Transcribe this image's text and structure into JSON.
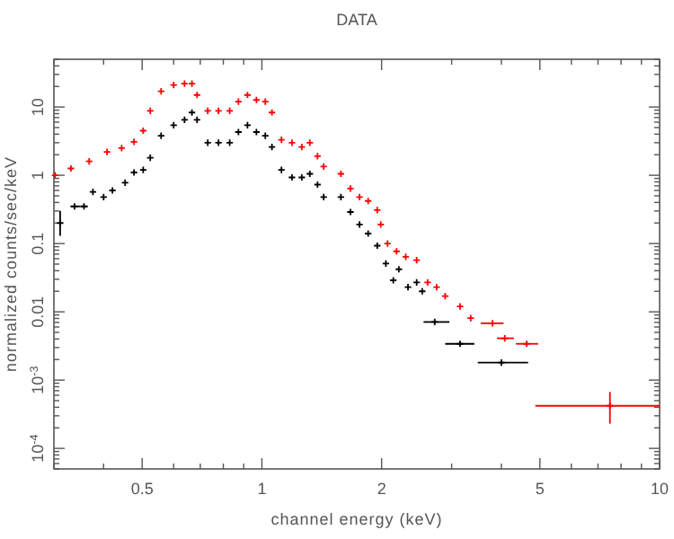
{
  "chart_data": {
    "type": "scatter",
    "title": "DATA",
    "xlabel": "channel energy (keV)",
    "ylabel": "normalized counts/sec/keV",
    "log": "xy",
    "grid": false,
    "marker": "cross",
    "xlim": [
      0.3,
      10
    ],
    "ylim": [
      5e-05,
      50
    ],
    "xticks": [
      {
        "value": 0.3,
        "label": null
      },
      {
        "value": 0.4,
        "label": null
      },
      0.5,
      {
        "value": 0.6,
        "label": null
      },
      {
        "value": 0.7,
        "label": null
      },
      {
        "value": 0.8,
        "label": null
      },
      {
        "value": 0.9,
        "label": null
      },
      1,
      2,
      {
        "value": 3,
        "label": null
      },
      {
        "value": 4,
        "label": null
      },
      5,
      {
        "value": 6,
        "label": null
      },
      {
        "value": 7,
        "label": null
      },
      {
        "value": 8,
        "label": null
      },
      {
        "value": 9,
        "label": null
      },
      10
    ],
    "yticks": [
      {
        "value": 0.0001,
        "label": "10$^{-4}$"
      },
      {
        "value": 0.001,
        "label": "10$^{-3}$"
      },
      0.01,
      0.1,
      1,
      10,
      {
        "value": 5e-05,
        "label": null
      },
      {
        "value": 6e-05,
        "label": null
      },
      {
        "value": 7e-05,
        "label": null
      },
      {
        "value": 8e-05,
        "label": null
      },
      {
        "value": 9e-05,
        "label": null
      },
      {
        "value": 0.0002,
        "label": null
      },
      {
        "value": 0.0003,
        "label": null
      },
      {
        "value": 0.0004,
        "label": null
      },
      {
        "value": 0.0005,
        "label": null
      },
      {
        "value": 0.0006,
        "label": null
      },
      {
        "value": 0.0007,
        "label": null
      },
      {
        "value": 0.0008,
        "label": null
      },
      {
        "value": 0.0009,
        "label": null
      },
      {
        "value": 0.002,
        "label": null
      },
      {
        "value": 0.003,
        "label": null
      },
      {
        "value": 0.004,
        "label": null
      },
      {
        "value": 0.005,
        "label": null
      },
      {
        "value": 0.006,
        "label": null
      },
      {
        "value": 0.007,
        "label": null
      },
      {
        "value": 0.008,
        "label": null
      },
      {
        "value": 0.009,
        "label": null
      },
      {
        "value": 0.02,
        "label": null
      },
      {
        "value": 0.03,
        "label": null
      },
      {
        "value": 0.04,
        "label": null
      },
      {
        "value": 0.05,
        "label": null
      },
      {
        "value": 0.06,
        "label": null
      },
      {
        "value": 0.07,
        "label": null
      },
      {
        "value": 0.08,
        "label": null
      },
      {
        "value": 0.09,
        "label": null
      },
      {
        "value": 0.2,
        "label": null
      },
      {
        "value": 0.3,
        "label": null
      },
      {
        "value": 0.4,
        "label": null
      },
      {
        "value": 0.5,
        "label": null
      },
      {
        "value": 0.6,
        "label": null
      },
      {
        "value": 0.7,
        "label": null
      },
      {
        "value": 0.8,
        "label": null
      },
      {
        "value": 0.9,
        "label": null
      },
      {
        "value": 2,
        "label": null
      },
      {
        "value": 3,
        "label": null
      },
      {
        "value": 4,
        "label": null
      },
      {
        "value": 5,
        "label": null
      },
      {
        "value": 6,
        "label": null
      },
      {
        "value": 7,
        "label": null
      },
      {
        "value": 8,
        "label": null
      },
      {
        "value": 9,
        "label": null
      },
      {
        "value": 20,
        "label": null
      },
      {
        "value": 30,
        "label": null
      },
      {
        "value": 40,
        "label": null
      },
      {
        "value": 50,
        "label": null
      }
    ],
    "series": [
      {
        "color": "#000000",
        "x": [
          0.311,
          0.338,
          0.357,
          0.376,
          0.4,
          0.421,
          0.453,
          0.477,
          0.503,
          0.524,
          0.558,
          0.6,
          0.639,
          0.667,
          0.687,
          0.731,
          0.778,
          0.83,
          0.873,
          0.92,
          0.969,
          1.02,
          1.06,
          1.12,
          1.19,
          1.26,
          1.32,
          1.38,
          1.43,
          1.58,
          1.67,
          1.76,
          1.85,
          1.95,
          2.05,
          2.14,
          2.21,
          2.33,
          2.45,
          2.53,
          2.72,
          3.15,
          4.0
        ],
        "values": [
          0.2,
          0.35,
          0.35,
          0.57,
          0.48,
          0.6,
          0.78,
          1.1,
          1.2,
          1.8,
          3.8,
          5.4,
          6.5,
          8.3,
          6.5,
          3.0,
          3.0,
          3.0,
          4.3,
          5.4,
          4.3,
          3.8,
          2.6,
          1.2,
          0.93,
          0.93,
          1.05,
          0.73,
          0.48,
          0.48,
          0.29,
          0.19,
          0.14,
          0.093,
          0.051,
          0.029,
          0.042,
          0.023,
          0.027,
          0.02,
          0.0071,
          0.0034,
          0.0018
        ],
        "errors": [
          [
            0.13,
            0.3
          ],
          null,
          null,
          null,
          null,
          null,
          null,
          null,
          null,
          null,
          null,
          null,
          null,
          null,
          null,
          null,
          null,
          null,
          null,
          null,
          null,
          null,
          null,
          null,
          null,
          null,
          null,
          null,
          null,
          null,
          null,
          null,
          null,
          null,
          null,
          null,
          null,
          null,
          null,
          null,
          null,
          null,
          null
        ],
        "xerrors": [
          null,
          [
            0.33,
            0.35
          ],
          [
            0.35,
            0.365
          ],
          null,
          null,
          null,
          null,
          null,
          null,
          null,
          null,
          null,
          null,
          null,
          null,
          null,
          null,
          null,
          null,
          null,
          null,
          null,
          null,
          null,
          null,
          null,
          null,
          null,
          null,
          null,
          null,
          null,
          null,
          null,
          null,
          null,
          null,
          null,
          null,
          null,
          [
            2.55,
            2.96
          ],
          [
            2.89,
            3.42
          ],
          [
            3.49,
            4.67
          ]
        ]
      },
      {
        "color": "#ff0000",
        "x": [
          0.302,
          0.331,
          0.368,
          0.408,
          0.444,
          0.477,
          0.503,
          0.524,
          0.558,
          0.6,
          0.639,
          0.667,
          0.687,
          0.731,
          0.778,
          0.83,
          0.873,
          0.92,
          0.969,
          1.02,
          1.06,
          1.12,
          1.19,
          1.26,
          1.32,
          1.38,
          1.43,
          1.58,
          1.67,
          1.76,
          1.85,
          1.95,
          1.99,
          2.07,
          2.18,
          2.3,
          2.45,
          2.61,
          2.75,
          2.89,
          3.15,
          3.35,
          3.8,
          4.08,
          4.63,
          7.5
        ],
        "values": [
          1.0,
          1.26,
          1.6,
          2.2,
          2.5,
          3.1,
          4.5,
          8.8,
          17,
          21,
          22,
          22,
          15,
          8.8,
          8.8,
          8.8,
          12,
          15,
          12.7,
          12,
          8.3,
          3.3,
          3.0,
          2.6,
          3.0,
          1.9,
          1.34,
          1.05,
          0.64,
          0.48,
          0.42,
          0.31,
          0.19,
          0.1,
          0.077,
          0.064,
          0.057,
          0.027,
          0.023,
          0.017,
          0.012,
          0.0081,
          0.0068,
          0.0041,
          0.0034,
          0.00042
        ],
        "errors": [
          null,
          null,
          null,
          null,
          null,
          null,
          null,
          null,
          null,
          null,
          null,
          null,
          null,
          null,
          null,
          null,
          null,
          null,
          null,
          null,
          null,
          null,
          null,
          null,
          null,
          null,
          null,
          null,
          null,
          null,
          null,
          null,
          null,
          null,
          null,
          null,
          null,
          null,
          null,
          null,
          null,
          null,
          null,
          null,
          null,
          [
            0.00023,
            0.00067
          ]
        ],
        "xerrors": [
          null,
          null,
          null,
          null,
          null,
          null,
          null,
          null,
          null,
          null,
          null,
          null,
          null,
          null,
          null,
          null,
          null,
          null,
          null,
          null,
          null,
          null,
          null,
          null,
          null,
          null,
          null,
          null,
          null,
          null,
          null,
          null,
          null,
          null,
          null,
          null,
          null,
          null,
          null,
          null,
          null,
          null,
          [
            3.55,
            4.05
          ],
          [
            3.9,
            4.3
          ],
          [
            4.35,
            4.95
          ],
          [
            4.87,
            10
          ]
        ]
      }
    ]
  }
}
